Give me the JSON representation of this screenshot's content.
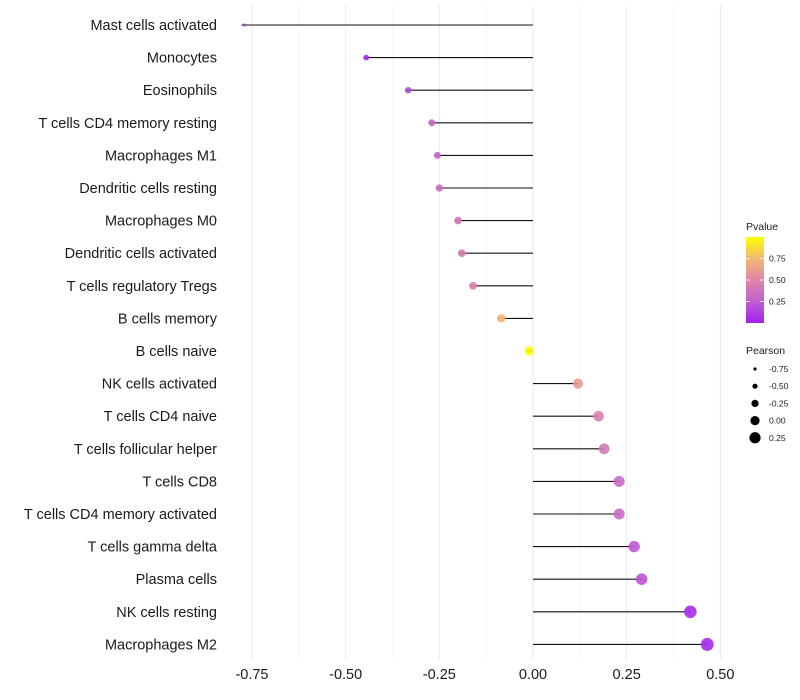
{
  "chart_data": {
    "type": "lollipop",
    "title": "",
    "xlabel": "",
    "ylabel": "",
    "xlim": [
      -0.8,
      0.55
    ],
    "x_ticks": [
      -0.75,
      -0.5,
      -0.25,
      0.0,
      0.25,
      0.5
    ],
    "x_tick_labels": [
      "-0.75",
      "-0.50",
      "-0.25",
      "0.00",
      "0.25",
      "0.50"
    ],
    "grid": true,
    "categories": [
      "Mast cells activated",
      "Monocytes",
      "Eosinophils",
      "T cells CD4 memory resting",
      "Macrophages M1",
      "Dendritic cells resting",
      "Macrophages M0",
      "Dendritic cells activated",
      "T cells regulatory  Tregs ",
      "B cells memory",
      "B cells naive",
      "NK cells activated",
      "T cells CD4 naive",
      "T cells follicular helper",
      "T cells CD8",
      "T cells CD4 memory activated",
      "T cells gamma delta",
      "Plasma cells",
      "NK cells resting",
      "Macrophages M2"
    ],
    "pearson": [
      -0.77,
      -0.445,
      -0.333,
      -0.27,
      -0.255,
      -0.25,
      -0.2,
      -0.19,
      -0.16,
      -0.085,
      -0.01,
      0.12,
      0.175,
      0.19,
      0.23,
      0.23,
      0.27,
      0.29,
      0.42,
      0.465
    ],
    "pvalue": [
      0.02,
      0.04,
      0.17,
      0.3,
      0.32,
      0.33,
      0.38,
      0.42,
      0.48,
      0.75,
      0.99,
      0.62,
      0.45,
      0.42,
      0.32,
      0.32,
      0.22,
      0.2,
      0.05,
      0.04
    ],
    "color_legend": {
      "title": "Pvalue",
      "labels": [
        "0.75",
        "0.50",
        "0.25"
      ],
      "ticks": [
        0.75,
        0.5,
        0.25
      ],
      "range": [
        0.0,
        1.0
      ],
      "low_color": "#a020f0",
      "mid_color": "#d67ab1",
      "high_color": "#ffff00"
    },
    "size_legend": {
      "title": "Pearson",
      "labels": [
        "-0.75",
        "-0.50",
        "-0.25",
        "0.00",
        "0.25"
      ],
      "values": [
        -0.75,
        -0.5,
        -0.25,
        0.0,
        0.25
      ]
    },
    "legend_position": "right"
  }
}
